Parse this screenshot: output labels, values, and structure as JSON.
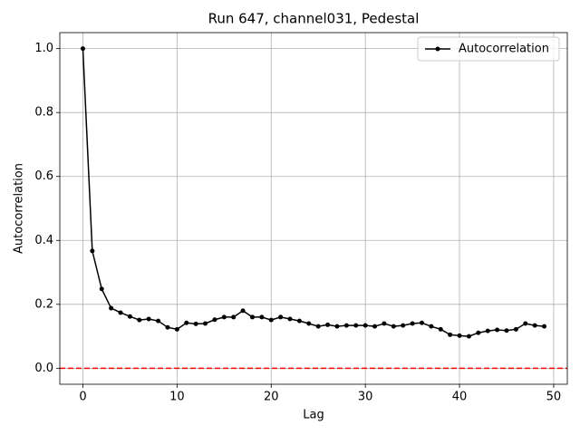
{
  "chart_data": {
    "type": "line",
    "title": "Run 647, channel031, Pedestal",
    "x_label": "Lag",
    "y_label": "Autocorrelation",
    "x": [
      0,
      1,
      2,
      3,
      4,
      5,
      6,
      7,
      8,
      9,
      10,
      11,
      12,
      13,
      14,
      15,
      16,
      17,
      18,
      19,
      20,
      21,
      22,
      23,
      24,
      25,
      26,
      27,
      28,
      29,
      30,
      31,
      32,
      33,
      34,
      35,
      36,
      37,
      38,
      39,
      40,
      41,
      42,
      43,
      44,
      45,
      46,
      47,
      48,
      49
    ],
    "series": [
      {
        "name": "Autocorrelation",
        "color": "#000000",
        "values": [
          1.0,
          0.367,
          0.248,
          0.188,
          0.174,
          0.162,
          0.151,
          0.154,
          0.148,
          0.128,
          0.122,
          0.142,
          0.139,
          0.14,
          0.152,
          0.16,
          0.16,
          0.18,
          0.16,
          0.16,
          0.151,
          0.16,
          0.154,
          0.148,
          0.14,
          0.131,
          0.136,
          0.131,
          0.134,
          0.134,
          0.134,
          0.131,
          0.14,
          0.131,
          0.134,
          0.14,
          0.142,
          0.131,
          0.122,
          0.105,
          0.102,
          0.1,
          0.111,
          0.117,
          0.12,
          0.118,
          0.122,
          0.14,
          0.134,
          0.131
        ]
      }
    ],
    "hline": {
      "value": 0,
      "color": "#ff0000"
    },
    "xlim": [
      -2.45,
      51.45
    ],
    "xticks": [
      0,
      10,
      20,
      30,
      40,
      50
    ],
    "ylim": [
      -0.05,
      1.05
    ],
    "yticks": [
      {
        "value": 0,
        "label": "0.0"
      },
      0.2,
      0.4,
      0.6,
      0.8,
      {
        "value": 1,
        "label": "1.0"
      }
    ],
    "grid": true,
    "legend": "upper right"
  }
}
